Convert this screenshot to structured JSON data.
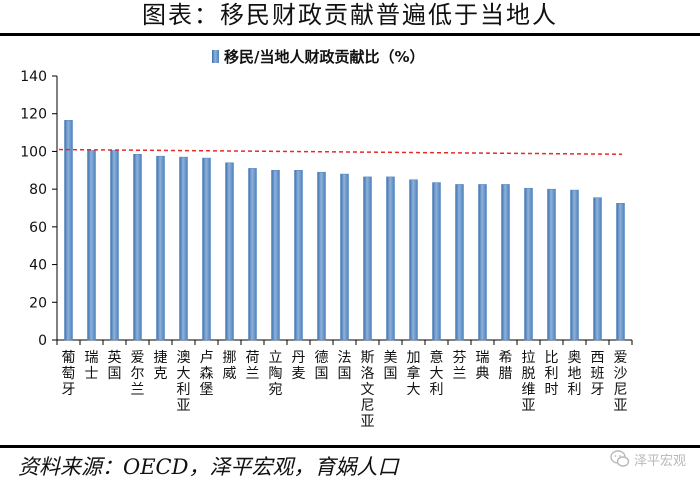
{
  "page": {
    "title": "图表：移民财政贡献普遍低于当地人",
    "source": "资料来源：OECD，泽平宏观，育娲人口",
    "watermark": "泽平宏观"
  },
  "colors": {
    "bar": "#4f81bd",
    "bar_light": "#8eb2da",
    "reference_line": "#e8292a",
    "axis": "#000000"
  },
  "chart_data": {
    "type": "bar",
    "legend": {
      "label": "移民/当地人财政贡献比（%）",
      "placement": "top-center"
    },
    "categories": [
      "葡萄牙",
      "瑞士",
      "英国",
      "爱尔兰",
      "捷克",
      "澳大利亚",
      "卢森堡",
      "挪威",
      "荷兰",
      "立陶宛",
      "丹麦",
      "德国",
      "法国",
      "斯洛文尼亚",
      "美国",
      "加拿大",
      "意大利",
      "芬兰",
      "瑞典",
      "希腊",
      "拉脱维亚",
      "比利时",
      "奥地利",
      "西班牙",
      "爱沙尼亚"
    ],
    "series": [
      {
        "name": "移民/当地人财政贡献比（%）",
        "values": [
          116.5,
          100.5,
          100.5,
          98.5,
          97.5,
          97,
          96.5,
          94,
          91,
          90,
          90,
          89,
          88,
          86.5,
          86.5,
          85,
          83.5,
          82.5,
          82.5,
          82.5,
          80.5,
          80,
          79.5,
          75.5,
          72.5
        ]
      }
    ],
    "reference_line": {
      "start": 101,
      "end": 98.5,
      "style": "dashed"
    },
    "ylim": [
      0,
      140
    ],
    "yticks": [
      0,
      20,
      40,
      60,
      80,
      100,
      120,
      140
    ],
    "grid": false
  }
}
